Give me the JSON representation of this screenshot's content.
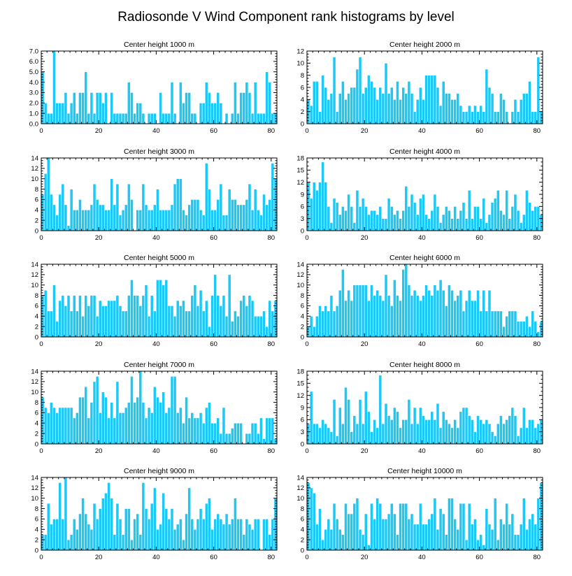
{
  "title": "Radiosonde V Wind Component rank histograms by level",
  "colors": {
    "bar": "#1ec8f5",
    "bar_edge": "#ffffff",
    "axis": "#000000"
  },
  "chart_data": [
    {
      "type": "bar",
      "title": "Center height 1000 m",
      "xlim": [
        0,
        82
      ],
      "ylim": [
        0,
        7
      ],
      "xticks": [
        0,
        20,
        40,
        60,
        80
      ],
      "xtick_labels": [
        "0",
        "20",
        "40",
        "60",
        "80"
      ],
      "yticks": [
        0,
        1,
        2,
        3,
        4,
        5,
        6,
        7
      ],
      "ytick_labels": [
        "0.0",
        "1.0",
        "2.0",
        "3.0",
        "4.0",
        "5.0",
        "6.0",
        "7.0"
      ],
      "values": [
        5,
        2,
        1,
        1,
        7,
        2,
        2,
        2,
        3,
        1,
        2,
        3,
        1,
        3,
        3,
        5,
        1,
        3,
        1,
        3,
        3,
        2,
        3,
        0,
        3,
        1,
        1,
        1,
        1,
        1,
        4,
        3,
        1,
        2,
        2,
        1,
        0,
        1,
        1,
        1,
        0,
        3,
        1,
        1,
        1,
        4,
        1,
        0,
        4,
        2,
        3,
        3,
        1,
        1,
        0,
        2,
        2,
        4,
        3,
        2,
        2,
        3,
        2,
        0,
        1,
        0,
        1,
        4,
        1,
        3,
        3,
        4,
        3,
        1,
        4,
        1,
        1,
        1,
        5,
        4,
        1,
        1
      ]
    },
    {
      "type": "bar",
      "title": "Center height 2000 m",
      "xlim": [
        0,
        82
      ],
      "ylim": [
        0,
        12
      ],
      "xticks": [
        0,
        20,
        40,
        60,
        80
      ],
      "xtick_labels": [
        "0",
        "20",
        "40",
        "60",
        "80"
      ],
      "yticks": [
        0,
        2,
        4,
        6,
        8,
        10,
        12
      ],
      "ytick_labels": [
        "0",
        "2",
        "4",
        "6",
        "8",
        "10",
        "12"
      ],
      "values": [
        4,
        3,
        7,
        7,
        2,
        8,
        6,
        4,
        5,
        11,
        2,
        5,
        7,
        4,
        5,
        6,
        6,
        9,
        11,
        5,
        6,
        8,
        7,
        6,
        4,
        6,
        5,
        10,
        5,
        6,
        4,
        7,
        4,
        6,
        5,
        7,
        5,
        2,
        4,
        6,
        4,
        8,
        8,
        8,
        8,
        6,
        3,
        7,
        5,
        5,
        4,
        4,
        5,
        3,
        2,
        2,
        3,
        2,
        3,
        2,
        3,
        2,
        9,
        6,
        5,
        2,
        2,
        5,
        4,
        2,
        0,
        2,
        4,
        2,
        4,
        5,
        5,
        7,
        2,
        2,
        11,
        2
      ]
    },
    {
      "type": "bar",
      "title": "Center height 3000 m",
      "xlim": [
        0,
        82
      ],
      "ylim": [
        0,
        14
      ],
      "xticks": [
        0,
        20,
        40,
        60,
        80
      ],
      "xtick_labels": [
        "0",
        "20",
        "40",
        "60",
        "80"
      ],
      "yticks": [
        0,
        2,
        4,
        6,
        8,
        10,
        12,
        14
      ],
      "ytick_labels": [
        "0",
        "2",
        "4",
        "6",
        "8",
        "10",
        "12",
        "14"
      ],
      "values": [
        7,
        11,
        14,
        7,
        5,
        3,
        7,
        9,
        5,
        1,
        8,
        4,
        4,
        6,
        4,
        4,
        4,
        5,
        9,
        6,
        5,
        5,
        4,
        4,
        10,
        5,
        9,
        3,
        4,
        5,
        9,
        6,
        0,
        4,
        4,
        9,
        5,
        4,
        4,
        5,
        8,
        4,
        4,
        4,
        4,
        5,
        9,
        10,
        10,
        4,
        3,
        5,
        6,
        6,
        6,
        4,
        3,
        13,
        8,
        4,
        4,
        6,
        9,
        3,
        3,
        8,
        6,
        6,
        5,
        5,
        5,
        6,
        9,
        4,
        8,
        4,
        3,
        7,
        5,
        6,
        13,
        10
      ]
    },
    {
      "type": "bar",
      "title": "Center height 4000 m",
      "xlim": [
        0,
        82
      ],
      "ylim": [
        0,
        18
      ],
      "xticks": [
        0,
        20,
        40,
        60,
        80
      ],
      "xtick_labels": [
        "0",
        "20",
        "40",
        "60",
        "80"
      ],
      "yticks": [
        0,
        3,
        6,
        9,
        12,
        15,
        18
      ],
      "ytick_labels": [
        "0",
        "3",
        "6",
        "9",
        "12",
        "15",
        "18"
      ],
      "values": [
        12,
        8,
        12,
        10,
        12,
        17,
        12,
        6,
        2,
        8,
        7,
        4,
        6,
        5,
        9,
        6,
        2,
        10,
        6,
        8,
        6,
        4,
        5,
        5,
        4,
        6,
        3,
        3,
        8,
        6,
        4,
        5,
        3,
        5,
        11,
        6,
        9,
        7,
        4,
        8,
        9,
        4,
        3,
        5,
        9,
        6,
        2,
        4,
        6,
        5,
        3,
        6,
        3,
        5,
        7,
        3,
        10,
        3,
        6,
        6,
        3,
        8,
        2,
        4,
        7,
        8,
        10,
        5,
        4,
        10,
        3,
        6,
        9,
        5,
        2,
        4,
        10,
        7,
        5,
        6,
        6,
        4
      ]
    },
    {
      "type": "bar",
      "title": "Center height 5000 m",
      "xlim": [
        0,
        82
      ],
      "ylim": [
        0,
        14
      ],
      "xticks": [
        0,
        20,
        40,
        60,
        80
      ],
      "xtick_labels": [
        "0",
        "20",
        "40",
        "60",
        "80"
      ],
      "yticks": [
        0,
        2,
        4,
        6,
        8,
        10,
        12,
        14
      ],
      "ytick_labels": [
        "0",
        "2",
        "4",
        "6",
        "8",
        "10",
        "12",
        "14"
      ],
      "values": [
        8,
        9,
        5,
        5,
        10,
        3,
        7,
        8,
        6,
        8,
        5,
        8,
        5,
        8,
        4,
        8,
        6,
        8,
        8,
        4,
        7,
        6,
        6,
        7,
        7,
        7,
        8,
        6,
        5,
        5,
        8,
        11,
        8,
        8,
        6,
        8,
        10,
        4,
        8,
        5,
        11,
        11,
        10,
        11,
        6,
        6,
        4,
        7,
        6,
        7,
        5,
        5,
        8,
        10,
        6,
        9,
        5,
        7,
        2,
        8,
        12,
        8,
        6,
        8,
        4,
        12,
        3,
        5,
        4,
        7,
        8,
        6,
        8,
        7,
        4,
        4,
        4,
        5,
        2,
        7,
        5,
        7
      ]
    },
    {
      "type": "bar",
      "title": "Center height 6000 m",
      "xlim": [
        0,
        82
      ],
      "ylim": [
        0,
        14
      ],
      "xticks": [
        0,
        20,
        40,
        60,
        80
      ],
      "xtick_labels": [
        "0",
        "20",
        "40",
        "60",
        "80"
      ],
      "yticks": [
        0,
        2,
        4,
        6,
        8,
        10,
        12,
        14
      ],
      "ytick_labels": [
        "0",
        "2",
        "4",
        "6",
        "8",
        "10",
        "12",
        "14"
      ],
      "values": [
        2,
        4,
        2,
        4,
        6,
        5,
        6,
        5,
        8,
        5,
        6,
        9,
        13,
        7,
        9,
        7,
        10,
        10,
        10,
        10,
        10,
        7,
        10,
        8,
        9,
        8,
        7,
        12,
        8,
        6,
        11,
        8,
        7,
        13,
        14,
        10,
        8,
        9,
        8,
        7,
        8,
        10,
        9,
        8,
        10,
        9,
        11,
        9,
        6,
        10,
        9,
        7,
        8,
        9,
        5,
        7,
        9,
        7,
        7,
        9,
        5,
        9,
        5,
        9,
        5,
        5,
        5,
        5,
        2,
        4,
        5,
        5,
        5,
        3,
        3,
        3,
        4,
        2,
        5,
        3,
        1,
        3
      ]
    },
    {
      "type": "bar",
      "title": "Center height 7000 m",
      "xlim": [
        0,
        82
      ],
      "ylim": [
        0,
        14
      ],
      "xticks": [
        0,
        20,
        40,
        60,
        80
      ],
      "xtick_labels": [
        "0",
        "20",
        "40",
        "60",
        "80"
      ],
      "yticks": [
        0,
        2,
        4,
        6,
        8,
        10,
        12,
        14
      ],
      "ytick_labels": [
        "0",
        "2",
        "4",
        "6",
        "8",
        "10",
        "12",
        "14"
      ],
      "values": [
        9,
        7,
        6,
        8,
        7,
        6,
        7,
        7,
        7,
        7,
        7,
        5,
        6,
        9,
        9,
        11,
        5,
        8,
        12,
        13,
        6,
        10,
        9,
        5,
        8,
        5,
        12,
        6,
        6,
        7,
        8,
        13,
        8,
        9,
        14,
        8,
        5,
        7,
        6,
        11,
        9,
        8,
        10,
        6,
        7,
        13,
        13,
        6,
        7,
        4,
        9,
        5,
        6,
        5,
        5,
        6,
        4,
        7,
        8,
        4,
        4,
        5,
        2,
        7,
        2,
        2,
        3,
        4,
        4,
        4,
        0,
        2,
        2,
        4,
        4,
        2,
        5,
        1,
        5,
        5,
        5,
        1
      ]
    },
    {
      "type": "bar",
      "title": "Center height 8000 m",
      "xlim": [
        0,
        82
      ],
      "ylim": [
        0,
        18
      ],
      "xticks": [
        0,
        20,
        40,
        60,
        80
      ],
      "xtick_labels": [
        "0",
        "20",
        "40",
        "60",
        "80"
      ],
      "yticks": [
        0,
        3,
        6,
        9,
        12,
        15,
        18
      ],
      "ytick_labels": [
        "0",
        "3",
        "6",
        "9",
        "12",
        "15",
        "18"
      ],
      "values": [
        5,
        13,
        5,
        5,
        4,
        6,
        5,
        4,
        3,
        11,
        2,
        9,
        5,
        14,
        11,
        3,
        7,
        5,
        11,
        5,
        13,
        8,
        3,
        6,
        4,
        17,
        5,
        10,
        7,
        6,
        9,
        8,
        4,
        6,
        6,
        11,
        5,
        9,
        5,
        9,
        7,
        6,
        6,
        8,
        6,
        10,
        4,
        8,
        6,
        5,
        4,
        6,
        4,
        8,
        9,
        9,
        7,
        6,
        3,
        7,
        6,
        5,
        6,
        5,
        3,
        2,
        5,
        7,
        5,
        6,
        7,
        9,
        7,
        2,
        4,
        9,
        4,
        6,
        6,
        4,
        5,
        6
      ]
    },
    {
      "type": "bar",
      "title": "Center height 9000 m",
      "xlim": [
        0,
        82
      ],
      "ylim": [
        0,
        14
      ],
      "xticks": [
        0,
        20,
        40,
        60,
        80
      ],
      "xtick_labels": [
        "0",
        "20",
        "40",
        "60",
        "80"
      ],
      "yticks": [
        0,
        2,
        4,
        6,
        8,
        10,
        12,
        14
      ],
      "ytick_labels": [
        "0",
        "2",
        "4",
        "6",
        "8",
        "10",
        "12",
        "14"
      ],
      "values": [
        3,
        3,
        9,
        5,
        6,
        6,
        13,
        6,
        14,
        2,
        3,
        6,
        4,
        7,
        10,
        7,
        5,
        4,
        9,
        6,
        8,
        10,
        11,
        13,
        10,
        3,
        9,
        6,
        3,
        8,
        8,
        2,
        6,
        7,
        3,
        13,
        8,
        6,
        9,
        12,
        4,
        5,
        11,
        8,
        6,
        8,
        4,
        5,
        6,
        2,
        7,
        12,
        6,
        4,
        6,
        8,
        6,
        9,
        10,
        4,
        6,
        7,
        6,
        5,
        7,
        5,
        6,
        10,
        6,
        6,
        3,
        6,
        5,
        4,
        6,
        6,
        0,
        6,
        6,
        3,
        6,
        10
      ]
    },
    {
      "type": "bar",
      "title": "Center height 10000 m",
      "xlim": [
        0,
        82
      ],
      "ylim": [
        0,
        14
      ],
      "xticks": [
        0,
        20,
        40,
        60,
        80
      ],
      "xtick_labels": [
        "0",
        "20",
        "40",
        "60",
        "80"
      ],
      "yticks": [
        0,
        2,
        4,
        6,
        8,
        10,
        12,
        14
      ],
      "ytick_labels": [
        "0",
        "2",
        "4",
        "6",
        "8",
        "10",
        "12",
        "14"
      ],
      "values": [
        13,
        12,
        11,
        5,
        8,
        2,
        4,
        6,
        4,
        9,
        6,
        4,
        3,
        9,
        7,
        7,
        9,
        10,
        4,
        3,
        7,
        1,
        9,
        6,
        10,
        9,
        6,
        6,
        7,
        9,
        7,
        3,
        9,
        9,
        9,
        6,
        7,
        5,
        5,
        9,
        5,
        5,
        6,
        7,
        10,
        4,
        8,
        7,
        3,
        10,
        10,
        6,
        4,
        9,
        9,
        2,
        9,
        5,
        6,
        2,
        3,
        1,
        8,
        5,
        4,
        10,
        2,
        6,
        5,
        9,
        5,
        7,
        3,
        3,
        5,
        10,
        4,
        6,
        7,
        5,
        10,
        13
      ]
    }
  ]
}
